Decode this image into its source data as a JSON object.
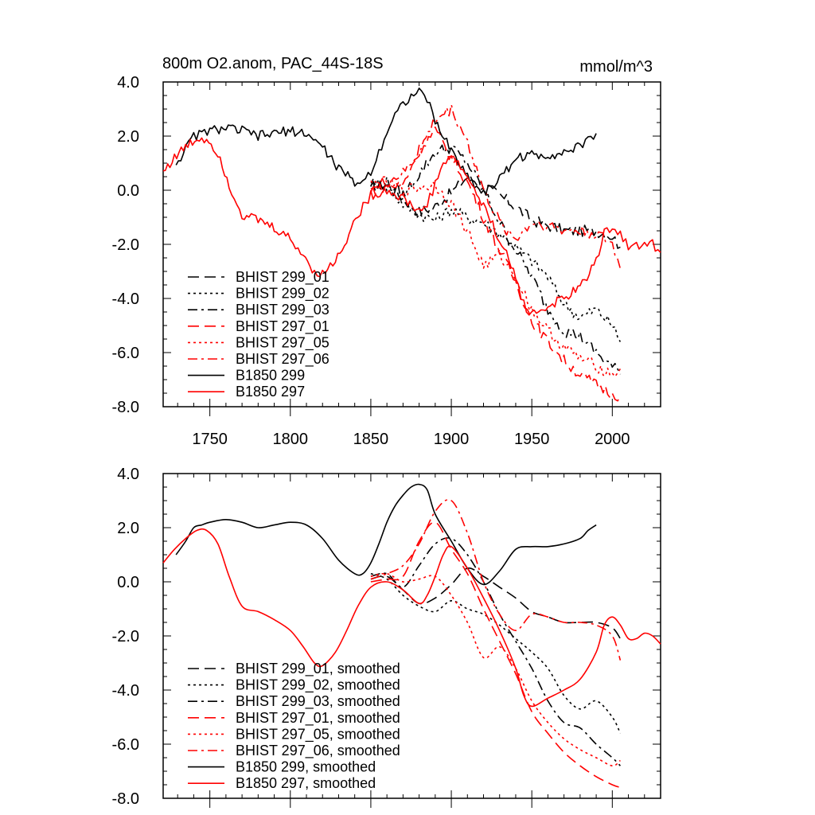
{
  "figure": {
    "title": "800m O2.anom, PAC_44S-18S",
    "units": "mmol/m^3"
  },
  "chart_data": [
    {
      "type": "line",
      "title": "800m O2.anom, PAC_44S-18S",
      "units_label": "mmol/m^3",
      "xlim": [
        1721,
        2030
      ],
      "ylim": [
        -8,
        4
      ],
      "x_ticks": [
        1750,
        1800,
        1850,
        1900,
        1950,
        2000
      ],
      "x_tick_labels": [
        "1750",
        "1800",
        "1850",
        "1900",
        "1950",
        "2000"
      ],
      "y_ticks": [
        4,
        2,
        0,
        -2,
        -4,
        -6,
        -8
      ],
      "y_tick_labels": [
        "4.0",
        "2.0",
        "0.0",
        "-2.0",
        "-4.0",
        "-6.0",
        "-8.0"
      ],
      "legend_position": "bottom-left",
      "series": [
        {
          "name": "BHIST 299_01",
          "color": "#000000",
          "dash": "dash",
          "noise": 0.22,
          "x": [
            1850,
            1860,
            1870,
            1880,
            1890,
            1900,
            1910,
            1920,
            1930,
            1940,
            1950,
            1960,
            1970,
            1980,
            1990,
            2000,
            2005
          ],
          "y": [
            0.1,
            0.2,
            -0.3,
            -0.8,
            -0.6,
            -0.1,
            0.5,
            0.2,
            -0.2,
            -0.6,
            -1.1,
            -1.3,
            -1.5,
            -1.5,
            -1.5,
            -1.7,
            -2.1
          ]
        },
        {
          "name": "BHIST 299_02",
          "color": "#000000",
          "dash": "dot",
          "noise": 0.22,
          "x": [
            1850,
            1860,
            1870,
            1880,
            1890,
            1900,
            1910,
            1920,
            1930,
            1940,
            1950,
            1960,
            1970,
            1980,
            1990,
            2000,
            2005
          ],
          "y": [
            0.3,
            0.1,
            -0.5,
            -0.9,
            -1.1,
            -0.7,
            -1.0,
            -1.2,
            -1.6,
            -2.1,
            -2.6,
            -3.2,
            -4.2,
            -4.7,
            -4.4,
            -5.0,
            -5.6
          ]
        },
        {
          "name": "BHIST 299_03",
          "color": "#000000",
          "dash": "dashdot",
          "noise": 0.22,
          "x": [
            1850,
            1860,
            1870,
            1880,
            1890,
            1900,
            1910,
            1920,
            1930,
            1940,
            1950,
            1960,
            1970,
            1980,
            1990,
            2000,
            2005
          ],
          "y": [
            0.2,
            0.3,
            -0.2,
            0.6,
            1.4,
            1.6,
            1.0,
            0.0,
            -1.2,
            -2.2,
            -3.2,
            -4.4,
            -5.2,
            -5.4,
            -6.0,
            -6.5,
            -6.8
          ]
        },
        {
          "name": "BHIST 297_01",
          "color": "#ff0000",
          "dash": "dash",
          "noise": 0.22,
          "x": [
            1850,
            1860,
            1870,
            1880,
            1890,
            1900,
            1910,
            1920,
            1930,
            1940,
            1950,
            1960,
            1970,
            1980,
            1990,
            2000,
            2005
          ],
          "y": [
            0.0,
            0.1,
            0.2,
            1.5,
            2.2,
            1.2,
            0.3,
            -1.0,
            -2.2,
            -3.4,
            -4.8,
            -5.6,
            -6.3,
            -6.8,
            -7.2,
            -7.5,
            -7.6
          ]
        },
        {
          "name": "BHIST 297_05",
          "color": "#ff0000",
          "dash": "dot",
          "noise": 0.22,
          "x": [
            1850,
            1860,
            1870,
            1880,
            1890,
            1900,
            1910,
            1920,
            1930,
            1940,
            1950,
            1960,
            1970,
            1980,
            1990,
            2000,
            2005
          ],
          "y": [
            0.2,
            0.3,
            0.0,
            0.1,
            0.2,
            -0.5,
            -1.5,
            -2.8,
            -2.4,
            -3.2,
            -4.4,
            -5.2,
            -5.8,
            -6.2,
            -6.5,
            -6.8,
            -6.6
          ]
        },
        {
          "name": "BHIST 297_06",
          "color": "#ff0000",
          "dash": "dashdot",
          "noise": 0.22,
          "x": [
            1850,
            1860,
            1870,
            1880,
            1890,
            1900,
            1910,
            1920,
            1930,
            1940,
            1950,
            1960,
            1970,
            1980,
            1990,
            2000,
            2005
          ],
          "y": [
            0.1,
            0.3,
            0.6,
            1.4,
            2.6,
            3.0,
            1.8,
            0.0,
            -1.2,
            -1.8,
            -1.2,
            -1.3,
            -1.5,
            -1.5,
            -1.6,
            -2.0,
            -2.9
          ]
        },
        {
          "name": "B1850 299",
          "color": "#000000",
          "dash": "solid",
          "noise": 0.18,
          "x": [
            1729,
            1735,
            1740,
            1745,
            1750,
            1760,
            1770,
            1780,
            1790,
            1800,
            1810,
            1820,
            1830,
            1840,
            1845,
            1850,
            1855,
            1860,
            1865,
            1870,
            1875,
            1880,
            1885,
            1890,
            1900,
            1910,
            1920,
            1930,
            1940,
            1950,
            1960,
            1970,
            1980,
            1985,
            1990
          ],
          "y": [
            1.0,
            1.5,
            2.0,
            2.1,
            2.2,
            2.3,
            2.2,
            2.0,
            2.1,
            2.2,
            2.1,
            1.6,
            0.8,
            0.3,
            0.3,
            0.7,
            1.4,
            2.2,
            2.8,
            3.2,
            3.5,
            3.6,
            3.4,
            2.5,
            1.5,
            0.5,
            -0.1,
            0.4,
            1.2,
            1.3,
            1.3,
            1.4,
            1.6,
            1.9,
            2.1
          ]
        },
        {
          "name": "B1850 297",
          "color": "#ff0000",
          "dash": "solid",
          "noise": 0.18,
          "x": [
            1721,
            1728,
            1735,
            1742,
            1748,
            1755,
            1762,
            1770,
            1780,
            1790,
            1800,
            1808,
            1815,
            1820,
            1828,
            1835,
            1842,
            1850,
            1860,
            1870,
            1880,
            1885,
            1890,
            1895,
            1900,
            1910,
            1920,
            1930,
            1940,
            1945,
            1950,
            1960,
            1970,
            1980,
            1990,
            1995,
            2000,
            2005,
            2010,
            2015,
            2020,
            2025,
            2030
          ],
          "y": [
            0.7,
            1.2,
            1.6,
            1.9,
            1.9,
            1.4,
            0.2,
            -0.9,
            -1.1,
            -1.4,
            -1.8,
            -2.4,
            -3.0,
            -3.1,
            -2.6,
            -1.8,
            -0.9,
            -0.2,
            0.0,
            -0.3,
            -0.8,
            -0.5,
            0.2,
            1.0,
            1.3,
            0.5,
            -0.6,
            -1.8,
            -3.2,
            -4.2,
            -4.6,
            -4.3,
            -4.0,
            -3.6,
            -2.6,
            -1.6,
            -1.3,
            -1.6,
            -2.1,
            -2.1,
            -1.9,
            -2.0,
            -2.3
          ]
        }
      ]
    },
    {
      "type": "line",
      "xlim": [
        1721,
        2030
      ],
      "ylim": [
        -8,
        4
      ],
      "y_ticks": [
        4,
        2,
        0,
        -2,
        -4,
        -6,
        -8
      ],
      "y_tick_labels": [
        "4.0",
        "2.0",
        "0.0",
        "-2.0",
        "-4.0",
        "-6.0",
        "-8.0"
      ],
      "legend_position": "bottom-left",
      "series": [
        {
          "name": "BHIST 299_01, smoothed",
          "color": "#000000",
          "dash": "dash",
          "x": [
            1850,
            1860,
            1870,
            1880,
            1890,
            1900,
            1910,
            1920,
            1930,
            1940,
            1950,
            1960,
            1970,
            1980,
            1990,
            2000,
            2005
          ],
          "y": [
            0.1,
            0.2,
            -0.3,
            -0.8,
            -0.6,
            -0.1,
            0.5,
            0.2,
            -0.2,
            -0.6,
            -1.1,
            -1.3,
            -1.5,
            -1.5,
            -1.5,
            -1.7,
            -2.1
          ]
        },
        {
          "name": "BHIST 299_02, smoothed",
          "color": "#000000",
          "dash": "dot",
          "x": [
            1850,
            1860,
            1870,
            1880,
            1890,
            1900,
            1910,
            1920,
            1930,
            1940,
            1950,
            1960,
            1970,
            1980,
            1990,
            2000,
            2005
          ],
          "y": [
            0.3,
            0.1,
            -0.5,
            -0.9,
            -1.1,
            -0.7,
            -1.0,
            -1.2,
            -1.6,
            -2.1,
            -2.6,
            -3.2,
            -4.2,
            -4.7,
            -4.4,
            -5.0,
            -5.6
          ]
        },
        {
          "name": "BHIST 299_03, smoothed",
          "color": "#000000",
          "dash": "dashdot",
          "x": [
            1850,
            1860,
            1870,
            1880,
            1890,
            1900,
            1910,
            1920,
            1930,
            1940,
            1950,
            1960,
            1970,
            1980,
            1990,
            2000,
            2005
          ],
          "y": [
            0.2,
            0.3,
            -0.2,
            0.6,
            1.4,
            1.6,
            1.0,
            0.0,
            -1.2,
            -2.2,
            -3.2,
            -4.4,
            -5.2,
            -5.4,
            -6.0,
            -6.5,
            -6.8
          ]
        },
        {
          "name": "BHIST 297_01, smoothed",
          "color": "#ff0000",
          "dash": "dash",
          "x": [
            1850,
            1860,
            1870,
            1880,
            1890,
            1900,
            1910,
            1920,
            1930,
            1940,
            1950,
            1960,
            1970,
            1980,
            1990,
            2000,
            2005
          ],
          "y": [
            0.0,
            0.1,
            0.2,
            1.5,
            2.2,
            1.2,
            0.3,
            -1.0,
            -2.2,
            -3.4,
            -4.8,
            -5.6,
            -6.3,
            -6.8,
            -7.2,
            -7.5,
            -7.6
          ]
        },
        {
          "name": "BHIST 297_05, smoothed",
          "color": "#ff0000",
          "dash": "dot",
          "x": [
            1850,
            1860,
            1870,
            1880,
            1890,
            1900,
            1910,
            1920,
            1930,
            1940,
            1950,
            1960,
            1970,
            1980,
            1990,
            2000,
            2005
          ],
          "y": [
            0.2,
            0.3,
            0.0,
            0.1,
            0.2,
            -0.5,
            -1.5,
            -2.8,
            -2.4,
            -3.2,
            -4.4,
            -5.2,
            -5.8,
            -6.2,
            -6.5,
            -6.8,
            -6.6
          ]
        },
        {
          "name": "BHIST 297_06, smoothed",
          "color": "#ff0000",
          "dash": "dashdot",
          "x": [
            1850,
            1860,
            1870,
            1880,
            1890,
            1900,
            1910,
            1920,
            1930,
            1940,
            1950,
            1960,
            1970,
            1980,
            1990,
            2000,
            2005
          ],
          "y": [
            0.1,
            0.3,
            0.6,
            1.4,
            2.6,
            3.0,
            1.8,
            0.0,
            -1.2,
            -1.8,
            -1.2,
            -1.3,
            -1.5,
            -1.5,
            -1.6,
            -2.0,
            -2.9
          ]
        },
        {
          "name": "B1850 299, smoothed",
          "color": "#000000",
          "dash": "solid",
          "x": [
            1729,
            1735,
            1740,
            1745,
            1750,
            1760,
            1770,
            1780,
            1790,
            1800,
            1810,
            1820,
            1830,
            1840,
            1845,
            1850,
            1855,
            1860,
            1865,
            1870,
            1875,
            1880,
            1885,
            1890,
            1900,
            1910,
            1920,
            1930,
            1940,
            1950,
            1960,
            1970,
            1980,
            1985,
            1990
          ],
          "y": [
            1.0,
            1.5,
            2.0,
            2.1,
            2.2,
            2.3,
            2.2,
            2.0,
            2.1,
            2.2,
            2.1,
            1.6,
            0.8,
            0.3,
            0.3,
            0.7,
            1.4,
            2.2,
            2.8,
            3.2,
            3.5,
            3.6,
            3.4,
            2.5,
            1.5,
            0.5,
            -0.1,
            0.4,
            1.2,
            1.3,
            1.3,
            1.4,
            1.6,
            1.9,
            2.1
          ]
        },
        {
          "name": "B1850 297, smoothed",
          "color": "#ff0000",
          "dash": "solid",
          "x": [
            1721,
            1728,
            1735,
            1742,
            1748,
            1755,
            1762,
            1770,
            1780,
            1790,
            1800,
            1808,
            1815,
            1820,
            1828,
            1835,
            1842,
            1850,
            1860,
            1870,
            1880,
            1885,
            1890,
            1895,
            1900,
            1910,
            1920,
            1930,
            1940,
            1945,
            1950,
            1960,
            1970,
            1980,
            1990,
            1995,
            2000,
            2005,
            2010,
            2015,
            2020,
            2025,
            2030
          ],
          "y": [
            0.7,
            1.2,
            1.6,
            1.9,
            1.9,
            1.4,
            0.2,
            -0.9,
            -1.1,
            -1.4,
            -1.8,
            -2.4,
            -3.0,
            -3.1,
            -2.6,
            -1.8,
            -0.9,
            -0.2,
            0.0,
            -0.3,
            -0.8,
            -0.5,
            0.2,
            1.0,
            1.3,
            0.5,
            -0.6,
            -1.8,
            -3.2,
            -4.2,
            -4.6,
            -4.3,
            -4.0,
            -3.6,
            -2.6,
            -1.6,
            -1.3,
            -1.6,
            -2.1,
            -2.1,
            -1.9,
            -2.0,
            -2.3
          ]
        }
      ]
    }
  ]
}
